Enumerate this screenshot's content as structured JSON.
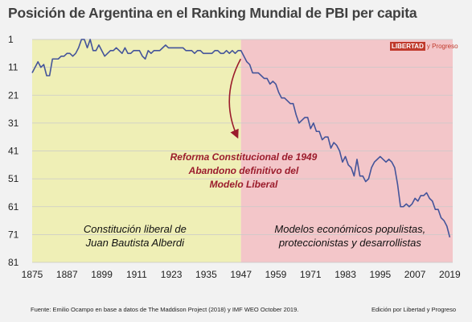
{
  "title": "Posición de Argentina en el Ranking Mundial de PBI per capita",
  "logo": {
    "brand": "LIBERTAD",
    "suffix": "y Progreso"
  },
  "source": "Fuente: Emilio Ocampo en base a datos de The Maddison Project (2018) y IMF WEO October 2019.",
  "credit": "Edición por Libertad y Progreso",
  "colors": {
    "liberal_era": "#efefb6",
    "populist_era": "#f3c6c9",
    "line": "#44549a",
    "annotation": "#9b1c2c"
  },
  "chart_data": {
    "type": "line",
    "x_ticks": [
      1875,
      1887,
      1899,
      1911,
      1923,
      1935,
      1947,
      1959,
      1971,
      1983,
      1995,
      2007,
      2019
    ],
    "y_ticks": [
      1,
      11,
      21,
      31,
      41,
      51,
      61,
      71,
      81
    ],
    "xlim": [
      1875,
      2020
    ],
    "ylim": [
      1,
      81
    ],
    "y_inverted": true,
    "grid": "horizontal",
    "regions": [
      {
        "from": 1875,
        "to": 1947,
        "label": [
          "Constitución liberal de",
          "Juan Bautista Alberdi"
        ],
        "color": "#efefb6"
      },
      {
        "from": 1947,
        "to": 2020,
        "label": [
          "Modelos económicos populistas,",
          "proteccionistas y desarrollistas"
        ],
        "color": "#f3c6c9"
      }
    ],
    "annotation": {
      "lines": [
        "Reforma Constitucional de 1949",
        "Abandono definitivo del",
        "Modelo Liberal"
      ],
      "arrow_points_to": {
        "x": 1948,
        "y": 42
      }
    },
    "series": [
      {
        "x": [
          1875,
          1876,
          1877,
          1878,
          1879,
          1880,
          1881,
          1882,
          1883,
          1884,
          1885,
          1886,
          1887,
          1888,
          1889,
          1890,
          1891,
          1892,
          1893,
          1894,
          1895,
          1896,
          1897,
          1898,
          1899,
          1900,
          1901,
          1902,
          1903,
          1904,
          1905,
          1906,
          1907,
          1908,
          1909,
          1910,
          1911,
          1912,
          1913,
          1914,
          1915,
          1916,
          1917,
          1918,
          1919,
          1920,
          1921,
          1922,
          1923,
          1924,
          1925,
          1926,
          1927,
          1928,
          1929,
          1930,
          1931,
          1932,
          1933,
          1934,
          1935,
          1936,
          1937,
          1938,
          1939,
          1940,
          1941,
          1942,
          1943,
          1944,
          1945,
          1946,
          1947,
          1948,
          1949,
          1950,
          1951,
          1952,
          1953,
          1954,
          1955,
          1956,
          1957,
          1958,
          1959,
          1960,
          1961,
          1962,
          1963,
          1964,
          1965,
          1966,
          1967,
          1968,
          1969,
          1970,
          1971,
          1972,
          1973,
          1974,
          1975,
          1976,
          1977,
          1978,
          1979,
          1980,
          1981,
          1982,
          1983,
          1984,
          1985,
          1986,
          1987,
          1988,
          1989,
          1990,
          1991,
          1992,
          1993,
          1994,
          1995,
          1996,
          1997,
          1998,
          1999,
          2000,
          2001,
          2002,
          2003,
          2004,
          2005,
          2006,
          2007,
          2008,
          2009,
          2010,
          2011,
          2012,
          2013,
          2014,
          2015,
          2016,
          2017,
          2018,
          2019
        ],
        "values": [
          13,
          11,
          9,
          11,
          10,
          14,
          14,
          8,
          8,
          8,
          7,
          7,
          6,
          6,
          7,
          6,
          4,
          1,
          1,
          4,
          1,
          5,
          5,
          3,
          5,
          7,
          6,
          5,
          5,
          4,
          5,
          6,
          4,
          6,
          6,
          5,
          5,
          5,
          7,
          8,
          5,
          6,
          5,
          5,
          5,
          4,
          3,
          4,
          4,
          4,
          4,
          4,
          4,
          5,
          5,
          5,
          6,
          5,
          5,
          6,
          6,
          6,
          6,
          5,
          5,
          6,
          6,
          5,
          6,
          5,
          6,
          5,
          5,
          7,
          9,
          10,
          13,
          13,
          13,
          14,
          15,
          15,
          17,
          16,
          17,
          20,
          22,
          22,
          23,
          24,
          24,
          28,
          31,
          30,
          29,
          29,
          33,
          31,
          34,
          34,
          37,
          36,
          36,
          40,
          38,
          39,
          41,
          45,
          43,
          46,
          47,
          50,
          44,
          50,
          50,
          52,
          51,
          47,
          45,
          44,
          43,
          44,
          45,
          44,
          45,
          47,
          53,
          61,
          61,
          60,
          61,
          60,
          58,
          59,
          57,
          57,
          56,
          58,
          59,
          62,
          62,
          65,
          66,
          68,
          72
        ]
      }
    ]
  }
}
